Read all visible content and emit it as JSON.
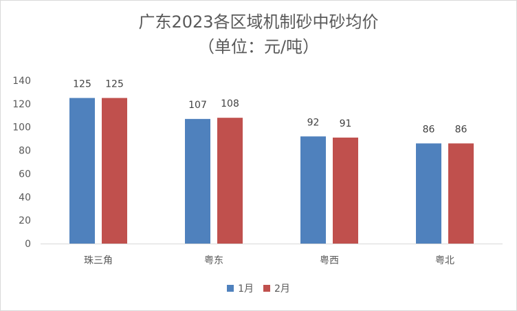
{
  "chart_data": {
    "type": "bar",
    "title_line1": "广东2023各区域机制砂中砂均价",
    "title_line2": "（单位：元/吨）",
    "categories": [
      "珠三角",
      "粤东",
      "粤西",
      "粤北"
    ],
    "series": [
      {
        "name": "1月",
        "color": "#4f81bd",
        "values": [
          125,
          107,
          92,
          86
        ]
      },
      {
        "name": "2月",
        "color": "#c0504d",
        "values": [
          125,
          108,
          91,
          86
        ]
      }
    ],
    "ylim": [
      0,
      140
    ],
    "yticks": [
      0,
      20,
      40,
      60,
      80,
      100,
      120,
      140
    ],
    "grid": false,
    "legend_position": "bottom"
  }
}
